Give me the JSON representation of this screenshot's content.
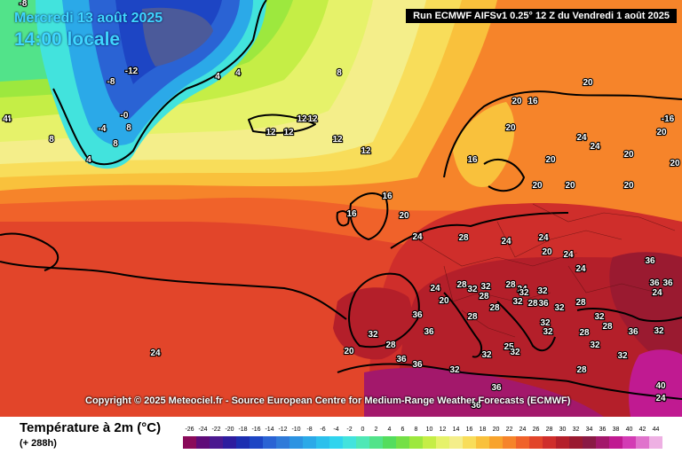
{
  "header": {
    "date": "Mercredi 13 août 2025",
    "time": "14:00 locale",
    "run": "Run ECMWF AIFSv1 0.25° 12 Z du Vendredi 1 août 2025"
  },
  "copyright": "Copyright © 2025 Meteociel.fr - Source European Centre for Medium-Range Weather Forecasts (ECMWF)",
  "legend": {
    "title": "Température à 2m (°C)",
    "subtitle": "(+ 288h)",
    "ticks": [
      "-26",
      "-24",
      "-22",
      "-20",
      "-18",
      "-16",
      "-14",
      "-12",
      "-10",
      "-8",
      "-6",
      "-4",
      "-2",
      "0",
      "2",
      "4",
      "6",
      "8",
      "10",
      "12",
      "14",
      "16",
      "18",
      "20",
      "22",
      "24",
      "26",
      "28",
      "30",
      "32",
      "34",
      "36",
      "38",
      "40",
      "42",
      "44"
    ],
    "colors": [
      "#8a0a5a",
      "#5f0b79",
      "#4b1890",
      "#2e1c9f",
      "#1c2eb1",
      "#1d45c4",
      "#2a63d4",
      "#2f7ad9",
      "#2c93e2",
      "#2ba9e8",
      "#2cc0ec",
      "#30d4ee",
      "#42e3dd",
      "#4fe8b6",
      "#52e38a",
      "#54dd5e",
      "#74e046",
      "#9de83e",
      "#c5ee46",
      "#e6f26a",
      "#f4ee8a",
      "#f8dd5a",
      "#f9c13c",
      "#f8a32c",
      "#f6842a",
      "#f0622a",
      "#e2452a",
      "#cf2e2b",
      "#b41f2a",
      "#9a1a30",
      "#8a1a45",
      "#a3186b",
      "#c01a91",
      "#d33cb4",
      "#e073cc",
      "#eeb0e3"
    ]
  },
  "map_labels": [
    {
      "text": "-8"
    },
    {
      "text": "-4"
    },
    {
      "text": "-12"
    },
    {
      "text": "-8"
    },
    {
      "text": "4"
    },
    {
      "text": "4"
    },
    {
      "text": "8"
    },
    {
      "text": "4"
    },
    {
      "text": "8"
    },
    {
      "text": "-4"
    },
    {
      "text": "-0"
    },
    {
      "text": "8"
    },
    {
      "text": "8"
    },
    {
      "text": "4"
    },
    {
      "text": "12"
    },
    {
      "text": "12"
    },
    {
      "text": "12"
    },
    {
      "text": "12"
    },
    {
      "text": "12"
    },
    {
      "text": "12"
    },
    {
      "text": "20"
    },
    {
      "text": "20"
    },
    {
      "text": "16"
    },
    {
      "text": "20"
    },
    {
      "text": "16"
    },
    {
      "text": "20"
    },
    {
      "text": "24"
    },
    {
      "text": "24"
    },
    {
      "text": "20"
    },
    {
      "text": "20"
    },
    {
      "text": "20"
    },
    {
      "text": "20"
    },
    {
      "text": "20"
    },
    {
      "text": "-16"
    },
    {
      "text": "20"
    },
    {
      "text": "16"
    },
    {
      "text": "16"
    },
    {
      "text": "20"
    },
    {
      "text": "24"
    },
    {
      "text": "28"
    },
    {
      "text": "24"
    },
    {
      "text": "24"
    },
    {
      "text": "24"
    },
    {
      "text": "36"
    },
    {
      "text": "24"
    },
    {
      "text": "20"
    },
    {
      "text": "24"
    },
    {
      "text": "20"
    },
    {
      "text": "24"
    },
    {
      "text": "28"
    },
    {
      "text": "32"
    },
    {
      "text": "28"
    },
    {
      "text": "32"
    },
    {
      "text": "28"
    },
    {
      "text": "32"
    },
    {
      "text": "28"
    },
    {
      "text": "32"
    },
    {
      "text": "32"
    },
    {
      "text": "36"
    },
    {
      "text": "28"
    },
    {
      "text": "32"
    },
    {
      "text": "28"
    },
    {
      "text": "32"
    },
    {
      "text": "28"
    },
    {
      "text": "32"
    },
    {
      "text": "36"
    },
    {
      "text": "36"
    },
    {
      "text": "32"
    },
    {
      "text": "28"
    },
    {
      "text": "32"
    },
    {
      "text": "32"
    },
    {
      "text": "36"
    },
    {
      "text": "32"
    },
    {
      "text": "28"
    },
    {
      "text": "32"
    },
    {
      "text": "25"
    },
    {
      "text": "32"
    },
    {
      "text": "28"
    },
    {
      "text": "36"
    },
    {
      "text": "36"
    },
    {
      "text": "32"
    },
    {
      "text": "36"
    },
    {
      "text": "36"
    },
    {
      "text": "24"
    },
    {
      "text": "20"
    },
    {
      "text": "36"
    },
    {
      "text": "36"
    },
    {
      "text": "40"
    },
    {
      "text": "24"
    },
    {
      "text": "32"
    },
    {
      "text": "28"
    },
    {
      "text": "24"
    }
  ]
}
